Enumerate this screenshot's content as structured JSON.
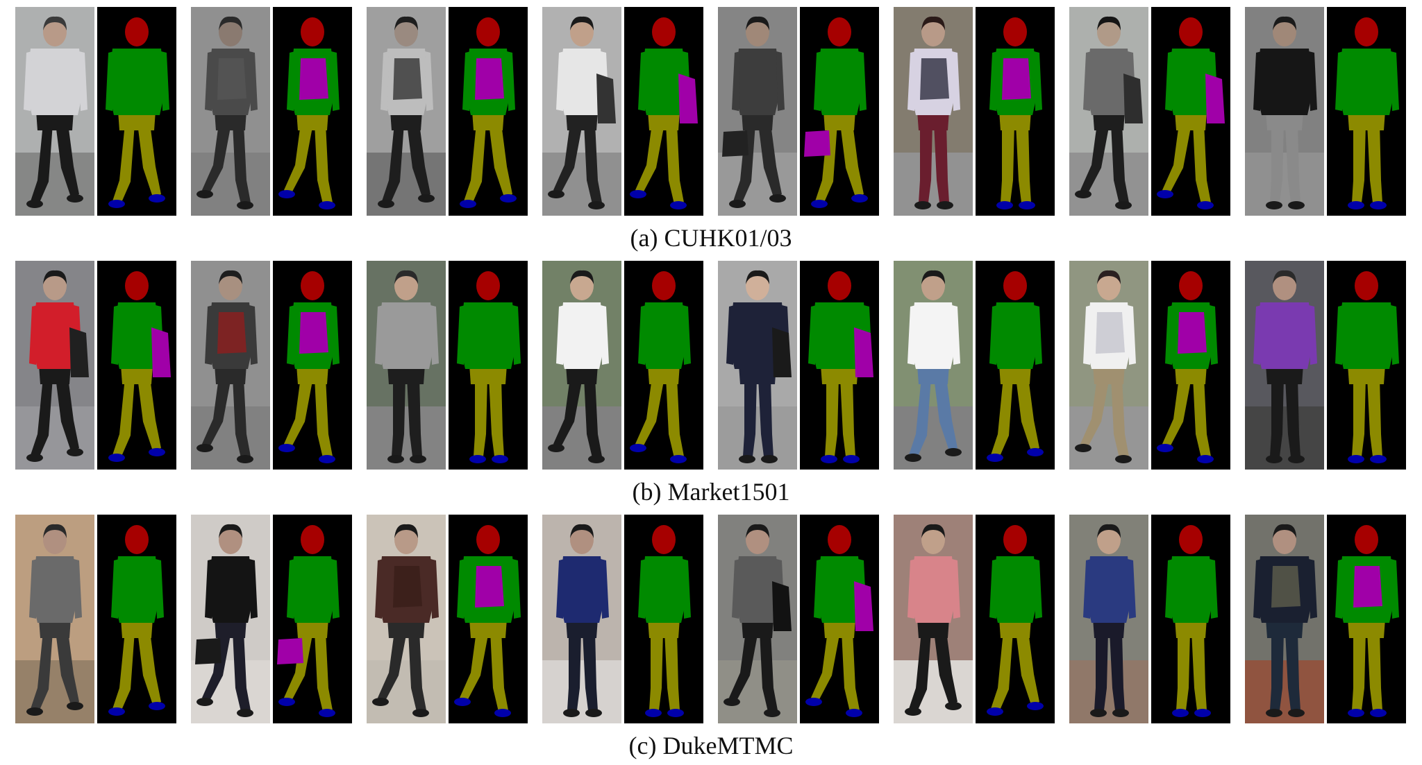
{
  "palette": {
    "background": "#000000",
    "head": "#a60000",
    "upper_body": "#008a00",
    "lower_body": "#8c8a00",
    "shoes": "#0000aa",
    "bag": "#a000a8"
  },
  "rows": [
    {
      "caption": "(a) CUHK01/03",
      "samples": [
        {
          "bg": "#b9bcbb",
          "floor": "#8f908f",
          "top": "#d3d3d6",
          "bottom": "#1a1a1a",
          "hair": "#3a3a3a",
          "skin": "#b89a88",
          "bag": "none",
          "bagc": "#000000",
          "pose": "walk-right",
          "wide": 1
        },
        {
          "bg": "#9a9a9a",
          "floor": "#8a8a8a",
          "top": "#4a4a4a",
          "bottom": "#2a2a2a",
          "hair": "#2a2a2a",
          "skin": "#8a7a70",
          "bag": "back",
          "bagc": "#555555",
          "pose": "walk-left",
          "wide": 0
        },
        {
          "bg": "#a9a9a9",
          "floor": "#7d7d7d",
          "top": "#bdbdbd",
          "bottom": "#1e1e1e",
          "hair": "#1e1e1e",
          "skin": "#9a8a80",
          "bag": "back",
          "bagc": "#3d3d3d",
          "pose": "walk-right",
          "wide": 0
        },
        {
          "bg": "#bdbdbd",
          "floor": "#9a9a9a",
          "top": "#e6e6e6",
          "bottom": "#222222",
          "hair": "#1a1a1a",
          "skin": "#c0a08a",
          "bag": "side",
          "bagc": "#333333",
          "pose": "walk-left",
          "wide": 0
        },
        {
          "bg": "#8e8e8e",
          "floor": "#a3a3a3",
          "top": "#3d3d3d",
          "bottom": "#2a2a2a",
          "hair": "#1a1a1a",
          "skin": "#a08878",
          "bag": "hand",
          "bagc": "#222222",
          "pose": "walk-right",
          "wide": 0
        },
        {
          "bg": "#8c8476",
          "floor": "#9c9c9c",
          "top": "#d7d2e2",
          "bottom": "#6a1e2e",
          "hair": "#2a1a18",
          "skin": "#b89a88",
          "bag": "back",
          "bagc": "#3a3a4a",
          "pose": "stand",
          "wide": 0
        },
        {
          "bg": "#b8bcb8",
          "floor": "#9c9c9c",
          "top": "#6a6a6a",
          "bottom": "#1e1e1e",
          "hair": "#151515",
          "skin": "#b09a88",
          "bag": "side",
          "bagc": "#2e2e2e",
          "pose": "walk-left",
          "wide": 0
        },
        {
          "bg": "#8a8a8a",
          "floor": "#9a9a9a",
          "top": "#161616",
          "bottom": "#8a8a8a",
          "hair": "#1a1a1a",
          "skin": "#a08878",
          "bag": "none",
          "bagc": "#000000",
          "pose": "stand",
          "wide": 1
        }
      ]
    },
    {
      "caption": "(b) Market1501",
      "samples": [
        {
          "bg": "#8e8e92",
          "floor": "#a0a0a4",
          "top": "#d21e2a",
          "bottom": "#1a1a1a",
          "hair": "#1a1a1a",
          "skin": "#b89a88",
          "bag": "side",
          "bagc": "#202020",
          "pose": "walk-right",
          "wide": 0
        },
        {
          "bg": "#9a9a9a",
          "floor": "#8a8a8a",
          "top": "#3a3a3a",
          "bottom": "#2a2a2a",
          "hair": "#1e1e1e",
          "skin": "#a89080",
          "bag": "back",
          "bagc": "#8a2020",
          "pose": "walk-left",
          "wide": 0
        },
        {
          "bg": "#6e7a6a",
          "floor": "#8c8c8c",
          "top": "#9a9a9a",
          "bottom": "#1e1e1e",
          "hair": "#2a2a2a",
          "skin": "#c0a08a",
          "bag": "none",
          "bagc": "#000000",
          "pose": "stand",
          "wide": 1
        },
        {
          "bg": "#7a8a6e",
          "floor": "#8a8a8a",
          "top": "#f2f2f2",
          "bottom": "#1a1a1a",
          "hair": "#1a1a1a",
          "skin": "#c8a890",
          "bag": "none",
          "bagc": "#000000",
          "pose": "walk-left",
          "wide": 0
        },
        {
          "bg": "#b4b4b4",
          "floor": "#a6a6a6",
          "top": "#1e2238",
          "bottom": "#1e2238",
          "hair": "#1a1a1a",
          "skin": "#d0b09a",
          "bag": "side",
          "bagc": "#1a1a1a",
          "pose": "stand",
          "wide": 1
        },
        {
          "bg": "#8a9a7a",
          "floor": "#8a8a8a",
          "top": "#f4f4f4",
          "bottom": "#5a7aa6",
          "hair": "#1a1a1a",
          "skin": "#c0a08a",
          "bag": "none",
          "bagc": "#000000",
          "pose": "walk-right",
          "wide": 0
        },
        {
          "bg": "#9aa08a",
          "floor": "#a0a0a0",
          "top": "#f0f0f0",
          "bottom": "#a09070",
          "hair": "#2a2020",
          "skin": "#c8a890",
          "bag": "back",
          "bagc": "#c8c8d0",
          "pose": "walk-left",
          "wide": 0
        },
        {
          "bg": "#5e5e64",
          "floor": "#4a4a4a",
          "top": "#7a3ab0",
          "bottom": "#1a1a1a",
          "hair": "#2a2a2a",
          "skin": "#b09080",
          "bag": "none",
          "bagc": "#000000",
          "pose": "stand",
          "wide": 1
        }
      ]
    },
    {
      "caption": "(c) DukeMTMC",
      "samples": [
        {
          "bg": "#c8a888",
          "floor": "#a08a70",
          "top": "#6a6a6a",
          "bottom": "#3a3a3a",
          "hair": "#2a2a2a",
          "skin": "#b09080",
          "bag": "none",
          "bagc": "#000000",
          "pose": "walk-right",
          "wide": 0
        },
        {
          "bg": "#dcd8d4",
          "floor": "#e8e4e0",
          "top": "#141414",
          "bottom": "#1e1e2a",
          "hair": "#1a1a1a",
          "skin": "#b09080",
          "bag": "hand",
          "bagc": "#1a1a1a",
          "pose": "walk-left",
          "wide": 0
        },
        {
          "bg": "#d8d0c4",
          "floor": "#cfc8be",
          "top": "#4a2a26",
          "bottom": "#2a2a2a",
          "hair": "#1a1a1a",
          "skin": "#b89a88",
          "bag": "back",
          "bagc": "#3a1e1a",
          "pose": "walk-left",
          "wide": 1
        },
        {
          "bg": "#c8c0b8",
          "floor": "#e4e0dc",
          "top": "#1e2a70",
          "bottom": "#1a1e2e",
          "hair": "#1a1a1a",
          "skin": "#b09080",
          "bag": "none",
          "bagc": "#000000",
          "pose": "stand",
          "wide": 0
        },
        {
          "bg": "#8a8a86",
          "floor": "#9a9890",
          "top": "#5a5a5a",
          "bottom": "#1a1a1a",
          "hair": "#1a1a1a",
          "skin": "#b09080",
          "bag": "side",
          "bagc": "#121212",
          "pose": "walk-left",
          "wide": 0
        },
        {
          "bg": "#a88a80",
          "floor": "#e8e4e0",
          "top": "#d8848a",
          "bottom": "#1a1a1a",
          "hair": "#1a1a1a",
          "skin": "#c0a08a",
          "bag": "none",
          "bagc": "#000000",
          "pose": "walk-right",
          "wide": 0
        },
        {
          "bg": "#8a8a80",
          "floor": "#9a8070",
          "top": "#2a3a80",
          "bottom": "#1a1a2a",
          "hair": "#1a1a1a",
          "skin": "#c0a08a",
          "bag": "none",
          "bagc": "#000000",
          "pose": "stand",
          "wide": 0
        },
        {
          "bg": "#7a7a72",
          "floor": "#9a5a44",
          "top": "#1a2030",
          "bottom": "#1e2a3a",
          "hair": "#1a1a1a",
          "skin": "#b09080",
          "bag": "back",
          "bagc": "#5a5a4a",
          "pose": "stand",
          "wide": 1
        }
      ]
    }
  ]
}
